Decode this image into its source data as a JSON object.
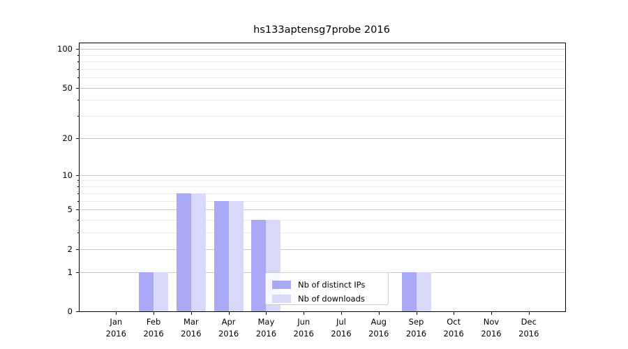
{
  "chart_data": {
    "type": "bar",
    "title": "hs133aptensg7probe 2016",
    "categories": [
      "Jan",
      "Feb",
      "Mar",
      "Apr",
      "May",
      "Jun",
      "Jul",
      "Aug",
      "Sep",
      "Oct",
      "Nov",
      "Dec"
    ],
    "x_year_label": "2016",
    "series": [
      {
        "name": "Nb of distinct IPs",
        "color": "#a9a9f5",
        "values": [
          0,
          1,
          7,
          6,
          4,
          0,
          0,
          0,
          1,
          0,
          0,
          0
        ]
      },
      {
        "name": "Nb of downloads",
        "color": "#d8d8f8",
        "values": [
          0,
          1,
          7,
          6,
          4,
          0,
          0,
          0,
          1,
          0,
          0,
          0
        ]
      }
    ],
    "yscale": "log1p",
    "ylim": [
      0,
      100
    ],
    "y_major_ticks": [
      0,
      1,
      2,
      5,
      10,
      20,
      50,
      100
    ],
    "y_minor_ticks": [
      3,
      4,
      6,
      7,
      8,
      9,
      30,
      40,
      60,
      70,
      80,
      90
    ],
    "grid": true,
    "legend_position": "lower center",
    "colors": {
      "grid_major": "#c9c9c9",
      "grid_minor": "#ececec",
      "spine": "#000000",
      "background": "#ffffff"
    }
  }
}
